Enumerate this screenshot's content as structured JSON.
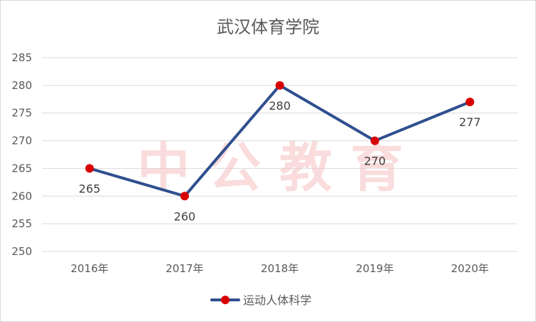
{
  "chart_data": {
    "type": "line",
    "title": "武汉体育学院",
    "categories": [
      "2016年",
      "2017年",
      "2018年",
      "2019年",
      "2020年"
    ],
    "series": [
      {
        "name": "运动人体科学",
        "values": [
          265,
          260,
          280,
          270,
          277
        ],
        "line_color": "#2f4f8f",
        "marker_color": "#d90000"
      }
    ],
    "ylim": [
      250,
      285
    ],
    "yticks": [
      250,
      255,
      260,
      265,
      270,
      275,
      280,
      285
    ],
    "grid": true,
    "legend": "bottom",
    "xlabel": "",
    "ylabel": ""
  },
  "watermark": {
    "text": "中 公 教 育"
  }
}
